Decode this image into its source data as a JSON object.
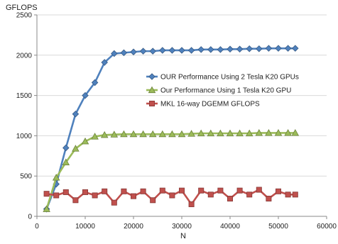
{
  "chart_data": {
    "type": "line",
    "title": "",
    "xlabel": "N",
    "ylabel": "GFLOPS",
    "xlim": [
      0,
      60000
    ],
    "ylim": [
      0,
      2500
    ],
    "x_ticks": [
      0,
      10000,
      20000,
      30000,
      40000,
      50000,
      60000
    ],
    "y_ticks": [
      0,
      500,
      1000,
      1500,
      2000,
      2500
    ],
    "grid": "horizontal",
    "legend_position": "center-right",
    "series": [
      {
        "name": "OUR Performance Using 2 Tesla K20 GPUs",
        "color": "#4f81bd",
        "marker": "diamond",
        "points": [
          [
            2000,
            90
          ],
          [
            4000,
            400
          ],
          [
            6000,
            850
          ],
          [
            8000,
            1270
          ],
          [
            10000,
            1500
          ],
          [
            12000,
            1660
          ],
          [
            14000,
            1910
          ],
          [
            16000,
            2020
          ],
          [
            18000,
            2030
          ],
          [
            20000,
            2040
          ],
          [
            22000,
            2050
          ],
          [
            24000,
            2050
          ],
          [
            26000,
            2060
          ],
          [
            28000,
            2060
          ],
          [
            30000,
            2060
          ],
          [
            32000,
            2060
          ],
          [
            34000,
            2070
          ],
          [
            36000,
            2070
          ],
          [
            38000,
            2070
          ],
          [
            40000,
            2075
          ],
          [
            42000,
            2075
          ],
          [
            44000,
            2080
          ],
          [
            46000,
            2080
          ],
          [
            48000,
            2085
          ],
          [
            50000,
            2085
          ],
          [
            52000,
            2085
          ],
          [
            53500,
            2085
          ]
        ]
      },
      {
        "name": "Our Performance Using 1 Tesla K20 GPU",
        "color": "#9bbb59",
        "marker": "triangle",
        "points": [
          [
            2000,
            90
          ],
          [
            4000,
            480
          ],
          [
            6000,
            670
          ],
          [
            8000,
            840
          ],
          [
            10000,
            930
          ],
          [
            12000,
            990
          ],
          [
            14000,
            1010
          ],
          [
            16000,
            1015
          ],
          [
            18000,
            1020
          ],
          [
            20000,
            1020
          ],
          [
            22000,
            1020
          ],
          [
            24000,
            1020
          ],
          [
            26000,
            1020
          ],
          [
            28000,
            1020
          ],
          [
            30000,
            1020
          ],
          [
            32000,
            1025
          ],
          [
            34000,
            1030
          ],
          [
            36000,
            1030
          ],
          [
            38000,
            1030
          ],
          [
            40000,
            1030
          ],
          [
            42000,
            1030
          ],
          [
            44000,
            1030
          ],
          [
            46000,
            1035
          ],
          [
            48000,
            1035
          ],
          [
            50000,
            1035
          ],
          [
            52000,
            1035
          ],
          [
            53500,
            1035
          ]
        ]
      },
      {
        "name": "MKL 16-way DGEMM GFLOPS",
        "color": "#c0504d",
        "marker": "square",
        "points": [
          [
            2000,
            280
          ],
          [
            4000,
            260
          ],
          [
            6000,
            300
          ],
          [
            8000,
            200
          ],
          [
            10000,
            300
          ],
          [
            12000,
            260
          ],
          [
            14000,
            310
          ],
          [
            16000,
            170
          ],
          [
            18000,
            310
          ],
          [
            20000,
            250
          ],
          [
            22000,
            310
          ],
          [
            24000,
            200
          ],
          [
            26000,
            320
          ],
          [
            28000,
            260
          ],
          [
            30000,
            320
          ],
          [
            32000,
            150
          ],
          [
            34000,
            320
          ],
          [
            36000,
            270
          ],
          [
            38000,
            320
          ],
          [
            40000,
            220
          ],
          [
            42000,
            320
          ],
          [
            44000,
            270
          ],
          [
            46000,
            330
          ],
          [
            48000,
            220
          ],
          [
            50000,
            310
          ],
          [
            52000,
            270
          ],
          [
            53500,
            270
          ]
        ]
      }
    ]
  }
}
